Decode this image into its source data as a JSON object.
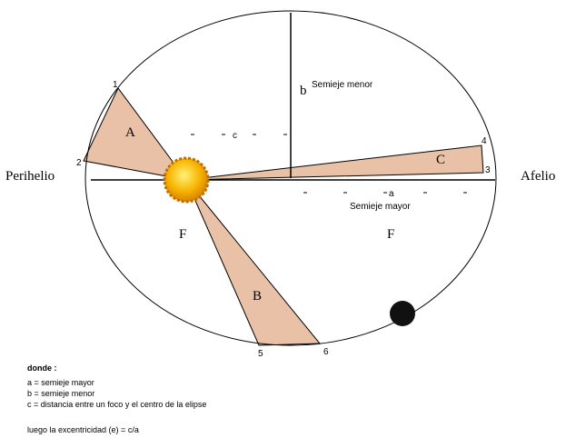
{
  "diagram": {
    "perihelion": "Perihelio",
    "aphelion": "Afelio",
    "sector_a": "A",
    "sector_b": "B",
    "sector_c": "C",
    "focus_left": "F",
    "focus_right": "F",
    "minor_symbol": "b",
    "minor_label": "Semieje menor",
    "major_symbol": "a",
    "major_label": "Semieje mayor",
    "c_symbol": "c",
    "points": [
      "1",
      "2",
      "3",
      "4",
      "5",
      "6"
    ]
  },
  "legend": {
    "heading": "donde :",
    "lines": [
      "a = semieje mayor",
      "b = semieje menor",
      "c = distancia entre un foco y el centro de la elipse"
    ],
    "eccentricity": "luego la excentricidad (e) = c/a"
  }
}
